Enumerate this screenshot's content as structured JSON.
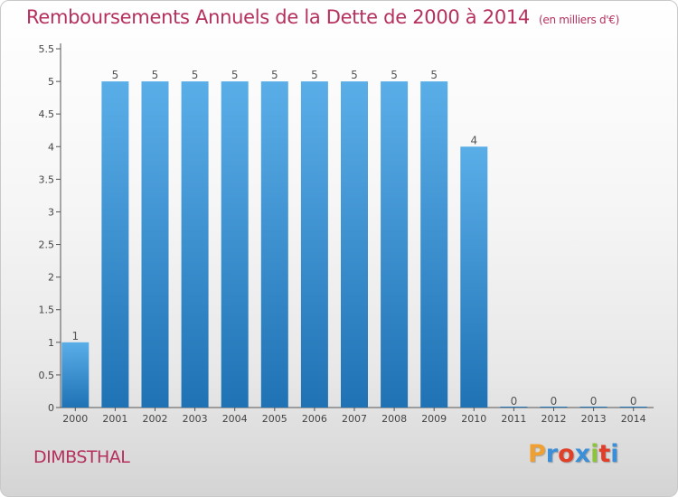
{
  "header": {
    "title": "Remboursements Annuels de la Dette de 2000 à 2014",
    "unit": "(en milliers d'€)"
  },
  "footer": {
    "commune": "DIMBSTHAL",
    "logo_text": "Proxiti",
    "logo_colors": [
      "#f0a030",
      "#3a8fd8",
      "#e0402a",
      "#3a8fd8",
      "#8cc43c",
      "#e0402a",
      "#3a8fd8"
    ]
  },
  "chart_data": {
    "type": "bar",
    "title": "Remboursements Annuels de la Dette de 2000 à 2014",
    "categories": [
      "2000",
      "2001",
      "2002",
      "2003",
      "2004",
      "2005",
      "2006",
      "2007",
      "2008",
      "2009",
      "2010",
      "2011",
      "2012",
      "2013",
      "2014"
    ],
    "values": [
      1,
      5,
      5,
      5,
      5,
      5,
      5,
      5,
      5,
      5,
      4,
      0,
      0,
      0,
      0
    ],
    "data_labels": [
      "1",
      "5",
      "5",
      "5",
      "5",
      "5",
      "5",
      "5",
      "5",
      "5",
      "4",
      "0",
      "0",
      "0",
      "0"
    ],
    "ylim": [
      0,
      5.5
    ],
    "yticks": [
      0,
      0.5,
      1,
      1.5,
      2,
      2.5,
      3,
      3.5,
      4,
      4.5,
      5,
      5.5
    ],
    "ytick_labels": [
      "0",
      "0.5",
      "1",
      "1.5",
      "2",
      "2.5",
      "3",
      "3.5",
      "4",
      "4.5",
      "5",
      "5.5"
    ],
    "xlabel": "",
    "ylabel": "",
    "grid": false,
    "bar_color_top": "#5aaee8",
    "bar_color_bottom": "#1f72b4"
  }
}
